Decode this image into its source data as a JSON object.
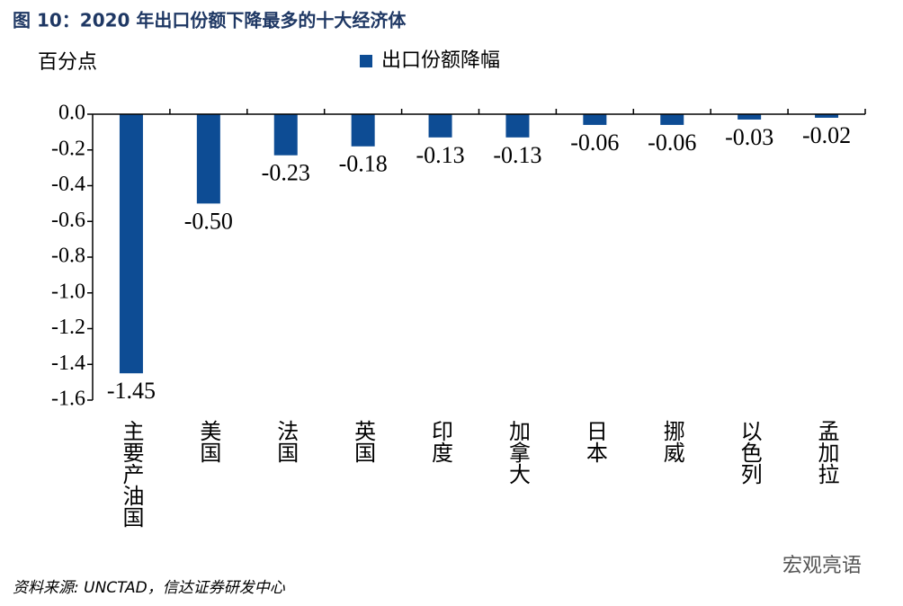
{
  "chart_data": {
    "type": "bar",
    "title": "图 10：2020 年出口份额下降最多的十大经济体",
    "y_label": "百分点",
    "source": "资料来源: UNCTAD，信达证券研发中心",
    "watermark": "宏观亮语",
    "categories": [
      "主要产油国",
      "美国",
      "法国",
      "英国",
      "印度",
      "加拿大",
      "日本",
      "挪威",
      "以色列",
      "孟加拉"
    ],
    "series": [
      {
        "name": "出口份额降幅",
        "color": "#0d4c94",
        "values": [
          -1.45,
          -0.5,
          -0.23,
          -0.18,
          -0.13,
          -0.13,
          -0.06,
          -0.06,
          -0.03,
          -0.02
        ],
        "value_labels": [
          "-1.45",
          "-0.50",
          "-0.23",
          "-0.18",
          "-0.13",
          "-0.13",
          "-0.06",
          "-0.06",
          "-0.03",
          "-0.02"
        ]
      }
    ],
    "ylim": [
      -1.6,
      0
    ],
    "yticks": [
      {
        "value": 0,
        "label": "0.0"
      },
      -0.2,
      -0.4,
      -0.6,
      -0.8,
      {
        "value": -1,
        "label": "-1.0"
      },
      -1.2,
      -1.4,
      -1.6
    ]
  }
}
